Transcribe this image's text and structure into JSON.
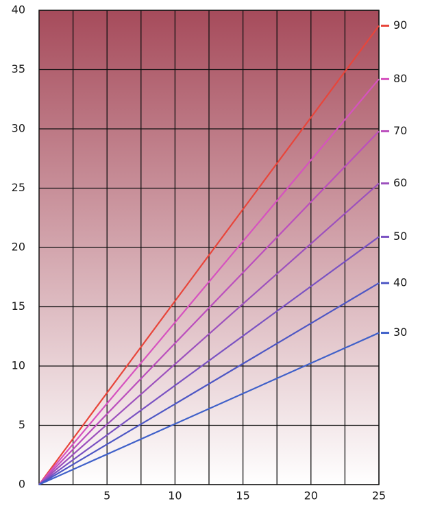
{
  "chart_data": {
    "type": "line",
    "x": [
      0,
      25
    ],
    "series": [
      {
        "name": "90",
        "color": "#e8453a",
        "values": [
          0,
          38.7
        ]
      },
      {
        "name": "80",
        "color": "#d652bf",
        "values": [
          0,
          34.2
        ]
      },
      {
        "name": "70",
        "color": "#bb4fbd",
        "values": [
          0,
          29.8
        ]
      },
      {
        "name": "60",
        "color": "#9c50bd",
        "values": [
          0,
          25.4
        ]
      },
      {
        "name": "50",
        "color": "#7a52c2",
        "values": [
          0,
          20.9
        ]
      },
      {
        "name": "40",
        "color": "#4d56c4",
        "values": [
          0,
          17.0
        ]
      },
      {
        "name": "30",
        "color": "#3f60c9",
        "values": [
          0,
          12.8
        ]
      }
    ],
    "xlim": [
      0,
      25
    ],
    "xticks": [
      5,
      10,
      15,
      20,
      25
    ],
    "x_minor_grid": [
      2.5,
      7.5,
      12.5,
      17.5,
      22.5
    ],
    "ylim": [
      0,
      40
    ],
    "yticks": [
      0,
      5,
      10,
      15,
      20,
      25,
      30,
      35,
      40
    ],
    "grid": true,
    "background_gradient": [
      "#a64b5b",
      "#ffffff"
    ]
  }
}
